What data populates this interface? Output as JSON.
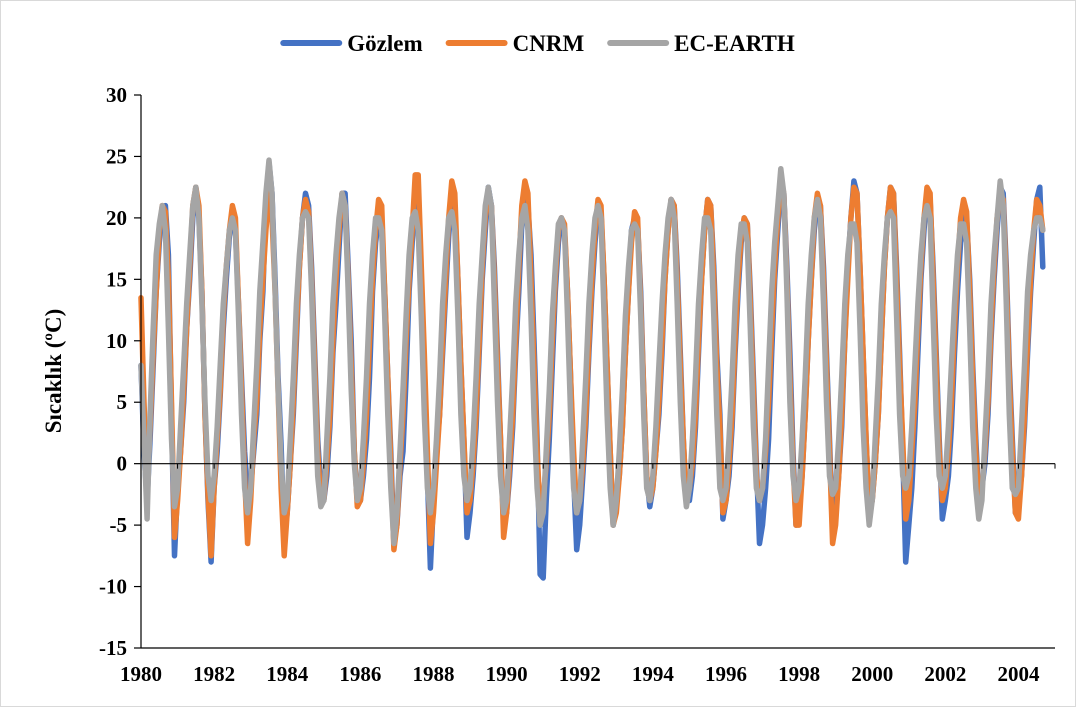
{
  "chart_data": {
    "type": "line",
    "title": "",
    "xlabel": "",
    "ylabel": "Sıcaklık (ºC)",
    "ylim": [
      -15,
      30
    ],
    "yticks": [
      -15,
      -10,
      -5,
      0,
      5,
      10,
      15,
      20,
      25,
      30
    ],
    "xlim": [
      1980,
      2005
    ],
    "xticks": [
      "1980",
      "1982",
      "1984",
      "1986",
      "1988",
      "1990",
      "1992",
      "1994",
      "1996",
      "1998",
      "2000",
      "2002",
      "2004"
    ],
    "grid": false,
    "legend_position": "top",
    "sampling": "monthly, starting January 1980",
    "series": [
      {
        "name": "Gözlem",
        "color": "#4472C4",
        "values": [
          8.0,
          1.0,
          -3.0,
          2.0,
          8.0,
          14.0,
          18.0,
          20.5,
          21.0,
          17.0,
          4.0,
          -7.5,
          -2.0,
          1.0,
          5.0,
          11.0,
          15.0,
          20.0,
          22.5,
          20.0,
          14.0,
          4.0,
          -3.0,
          -8.0,
          -2.0,
          1.0,
          5.5,
          11.0,
          15.0,
          18.5,
          20.0,
          19.0,
          13.0,
          7.0,
          1.0,
          -2.5,
          -2.0,
          1.0,
          4.0,
          10.0,
          14.0,
          21.0,
          24.5,
          22.0,
          15.0,
          7.0,
          1.5,
          -6.0,
          -4.0,
          0.0,
          4.0,
          10.0,
          16.0,
          20.0,
          22.0,
          21.0,
          16.0,
          9.0,
          2.0,
          -2.0,
          -3.0,
          -1.0,
          3.0,
          9.0,
          13.0,
          17.5,
          22.0,
          22.0,
          16.0,
          10.0,
          1.0,
          -3.0,
          -3.0,
          -1.0,
          2.0,
          7.0,
          14.0,
          18.0,
          20.0,
          19.0,
          14.0,
          7.0,
          1.0,
          -6.5,
          -5.0,
          -1.0,
          1.0,
          7.0,
          14.0,
          18.0,
          21.0,
          20.0,
          15.0,
          7.0,
          -1.0,
          -8.5,
          -3.0,
          1.0,
          4.0,
          9.0,
          14.0,
          18.5,
          22.0,
          21.0,
          15.0,
          8.0,
          2.0,
          -6.0,
          -4.0,
          -1.0,
          3.0,
          9.0,
          15.0,
          19.0,
          22.5,
          21.0,
          16.0,
          9.0,
          2.0,
          -5.0,
          -4.0,
          -1.0,
          3.0,
          9.0,
          14.0,
          19.5,
          22.0,
          21.0,
          17.0,
          10.0,
          2.0,
          -9.0,
          -9.3,
          -3.0,
          2.0,
          8.0,
          14.0,
          18.0,
          20.0,
          19.0,
          14.0,
          7.0,
          -1.0,
          -7.0,
          -5.0,
          -1.0,
          3.0,
          9.0,
          14.0,
          18.0,
          21.0,
          20.5,
          15.0,
          8.0,
          1.0,
          -5.0,
          -3.0,
          -1.0,
          3.0,
          9.0,
          14.0,
          19.0,
          20.0,
          19.5,
          14.0,
          6.0,
          -1.0,
          -3.5,
          -2.0,
          1.0,
          4.0,
          9.0,
          15.0,
          19.0,
          21.5,
          21.0,
          16.0,
          9.0,
          2.0,
          -3.0,
          -3.0,
          -1.0,
          3.0,
          9.0,
          15.0,
          19.0,
          21.5,
          21.0,
          16.0,
          9.0,
          4.0,
          -4.5,
          -3.0,
          -1.0,
          3.0,
          9.0,
          14.0,
          18.0,
          20.0,
          19.5,
          14.0,
          7.0,
          0.0,
          -6.5,
          -5.0,
          -2.0,
          2.0,
          9.0,
          15.0,
          19.0,
          22.5,
          22.0,
          16.0,
          9.0,
          1.0,
          -5.0,
          -4.0,
          -1.0,
          4.0,
          10.0,
          15.0,
          19.0,
          21.5,
          21.0,
          16.0,
          9.0,
          2.0,
          -5.5,
          -4.0,
          -1.0,
          3.0,
          10.0,
          16.0,
          20.0,
          23.0,
          22.0,
          16.0,
          9.0,
          2.0,
          -4.0,
          -3.0,
          0.0,
          4.0,
          10.0,
          16.0,
          20.0,
          22.5,
          22.0,
          16.0,
          9.0,
          1.0,
          -8.0,
          -5.0,
          -2.0,
          3.0,
          9.0,
          15.0,
          19.0,
          22.0,
          21.5,
          16.0,
          9.0,
          2.0,
          -4.5,
          -3.0,
          -1.0,
          3.0,
          9.0,
          14.0,
          18.0,
          20.5,
          20.0,
          15.0,
          8.0,
          2.0,
          -3.0,
          -2.0,
          0.0,
          4.0,
          10.0,
          15.0,
          19.0,
          22.5,
          22.0,
          16.0,
          8.0,
          2.0,
          -4.0,
          -3.0,
          -1.0,
          3.0,
          9.0,
          14.0,
          18.0,
          21.5,
          22.5,
          16.0
        ]
      },
      {
        "name": "CNRM",
        "color": "#ED7D31",
        "values": [
          13.5,
          5.0,
          -2.0,
          3.0,
          9.0,
          14.0,
          19.0,
          21.0,
          20.5,
          15.0,
          5.0,
          -6.0,
          -3.0,
          1.0,
          6.0,
          11.0,
          16.0,
          21.0,
          22.5,
          21.0,
          14.0,
          4.0,
          -2.5,
          -7.5,
          -2.0,
          2.0,
          6.0,
          12.0,
          16.0,
          19.0,
          21.0,
          20.0,
          13.0,
          6.0,
          -1.0,
          -6.5,
          -3.0,
          2.0,
          5.0,
          11.0,
          15.0,
          19.0,
          22.0,
          20.0,
          14.0,
          6.0,
          -2.0,
          -7.5,
          -4.0,
          0.0,
          5.0,
          11.0,
          16.0,
          20.0,
          21.5,
          20.5,
          15.0,
          8.0,
          1.0,
          -3.0,
          -3.0,
          0.0,
          4.0,
          10.0,
          15.0,
          19.0,
          22.0,
          21.0,
          15.0,
          8.0,
          1.0,
          -3.5,
          -3.0,
          0.0,
          4.0,
          10.0,
          15.0,
          19.0,
          21.5,
          21.0,
          14.0,
          7.0,
          0.0,
          -7.0,
          -5.0,
          0.0,
          4.0,
          10.0,
          15.0,
          19.0,
          23.5,
          23.5,
          16.0,
          9.0,
          1.0,
          -6.5,
          -4.0,
          0.0,
          4.0,
          10.0,
          15.0,
          20.0,
          23.0,
          22.0,
          15.0,
          8.0,
          2.0,
          -4.0,
          -3.0,
          0.0,
          4.0,
          10.0,
          16.0,
          20.0,
          22.0,
          21.0,
          15.0,
          8.0,
          2.0,
          -6.0,
          -4.0,
          0.0,
          4.0,
          10.0,
          16.0,
          21.0,
          23.0,
          22.0,
          15.0,
          8.0,
          1.0,
          -4.0,
          -3.0,
          0.0,
          4.0,
          10.0,
          15.0,
          19.0,
          20.0,
          19.5,
          14.0,
          7.0,
          1.0,
          -4.0,
          -3.0,
          0.0,
          4.0,
          10.0,
          15.0,
          19.0,
          21.5,
          21.0,
          15.0,
          8.0,
          1.0,
          -5.0,
          -4.0,
          -1.0,
          3.0,
          9.0,
          14.0,
          18.0,
          20.5,
          20.0,
          13.0,
          6.0,
          -1.0,
          -3.0,
          -2.0,
          1.0,
          5.0,
          10.0,
          15.0,
          19.0,
          21.5,
          21.0,
          15.0,
          8.0,
          2.0,
          -3.0,
          -2.0,
          0.0,
          4.0,
          10.0,
          15.0,
          19.0,
          21.5,
          21.0,
          15.0,
          8.0,
          3.0,
          -4.0,
          -3.0,
          0.0,
          4.0,
          10.0,
          15.0,
          18.5,
          20.0,
          19.5,
          13.0,
          6.0,
          -1.0,
          -3.0,
          -2.0,
          1.0,
          5.0,
          11.0,
          16.0,
          20.0,
          23.0,
          22.0,
          15.0,
          7.0,
          0.0,
          -5.0,
          -5.0,
          -1.0,
          4.0,
          10.0,
          15.0,
          20.0,
          22.0,
          21.0,
          15.0,
          8.0,
          1.0,
          -6.5,
          -5.0,
          -1.0,
          4.0,
          10.0,
          15.0,
          20.0,
          22.5,
          22.0,
          16.0,
          9.0,
          2.0,
          -4.0,
          -3.0,
          0.0,
          4.0,
          10.0,
          16.0,
          20.0,
          22.5,
          22.0,
          15.0,
          8.0,
          2.0,
          -4.5,
          -3.0,
          1.0,
          5.0,
          11.0,
          16.0,
          20.0,
          22.5,
          22.0,
          15.0,
          8.0,
          1.0,
          -3.0,
          -2.0,
          1.0,
          5.0,
          11.0,
          16.0,
          20.0,
          21.5,
          20.5,
          14.0,
          7.0,
          1.0,
          -3.0,
          -2.0,
          1.0,
          5.0,
          11.0,
          16.0,
          20.0,
          22.0,
          21.5,
          15.0,
          7.0,
          1.0,
          -4.0,
          -4.5,
          -1.0,
          4.0,
          10.0,
          15.0,
          19.0,
          21.5,
          21.0,
          19.0
        ]
      },
      {
        "name": "EC-EARTH",
        "color": "#A5A5A5",
        "values": [
          8.0,
          2.0,
          -4.5,
          4.0,
          11.0,
          17.0,
          19.5,
          21.0,
          19.0,
          11.0,
          2.0,
          -3.5,
          -2.0,
          3.0,
          8.0,
          13.0,
          17.0,
          21.0,
          22.5,
          20.0,
          13.0,
          5.0,
          -1.0,
          -3.0,
          -1.0,
          3.0,
          8.0,
          13.0,
          16.0,
          19.0,
          20.0,
          19.0,
          12.0,
          4.0,
          -2.0,
          -4.0,
          -2.0,
          3.0,
          8.0,
          14.0,
          18.0,
          22.0,
          24.7,
          22.0,
          14.0,
          6.0,
          0.0,
          -4.0,
          -3.0,
          2.0,
          7.0,
          13.0,
          17.0,
          20.0,
          20.5,
          20.0,
          14.0,
          6.0,
          -1.0,
          -3.5,
          -3.0,
          2.0,
          7.0,
          13.0,
          17.0,
          20.0,
          22.0,
          21.0,
          14.0,
          6.0,
          0.0,
          -3.0,
          -2.0,
          2.0,
          7.0,
          13.0,
          17.0,
          20.0,
          20.0,
          19.0,
          12.0,
          4.0,
          -2.0,
          -6.5,
          -4.0,
          1.0,
          6.0,
          12.0,
          17.0,
          20.0,
          20.5,
          19.0,
          12.0,
          4.0,
          -2.0,
          -4.0,
          -2.0,
          2.0,
          7.0,
          13.0,
          17.0,
          20.0,
          20.5,
          19.0,
          12.0,
          4.0,
          -1.0,
          -3.0,
          -2.0,
          2.0,
          7.0,
          13.0,
          17.0,
          21.0,
          22.5,
          21.0,
          13.0,
          5.0,
          -1.0,
          -4.0,
          -3.0,
          2.0,
          7.0,
          13.0,
          17.0,
          20.0,
          21.0,
          19.0,
          12.0,
          4.0,
          -2.0,
          -5.0,
          -4.0,
          1.0,
          6.0,
          12.0,
          16.0,
          19.5,
          20.0,
          19.0,
          12.0,
          4.0,
          -2.0,
          -4.0,
          -3.0,
          2.0,
          7.0,
          13.0,
          17.0,
          20.0,
          21.0,
          20.0,
          12.0,
          4.0,
          -2.0,
          -5.0,
          -3.0,
          1.0,
          6.0,
          12.0,
          16.0,
          19.0,
          19.5,
          19.0,
          12.0,
          4.0,
          -2.0,
          -3.0,
          -1.0,
          3.0,
          8.0,
          13.0,
          17.0,
          20.0,
          21.5,
          20.0,
          13.0,
          5.0,
          -1.0,
          -3.5,
          -2.0,
          2.0,
          7.0,
          13.0,
          17.0,
          20.0,
          20.0,
          19.0,
          12.0,
          4.0,
          -2.0,
          -3.0,
          -2.0,
          2.0,
          7.0,
          13.0,
          17.0,
          19.5,
          19.5,
          18.0,
          11.0,
          3.0,
          -2.0,
          -3.0,
          -2.0,
          2.0,
          8.0,
          14.0,
          18.0,
          21.0,
          24.0,
          22.0,
          14.0,
          5.0,
          -1.0,
          -3.0,
          -2.0,
          2.0,
          7.0,
          13.0,
          17.0,
          20.0,
          21.5,
          20.0,
          13.0,
          5.0,
          -1.0,
          -2.5,
          -2.0,
          2.0,
          7.0,
          13.0,
          17.0,
          19.5,
          19.5,
          18.0,
          11.0,
          3.0,
          -2.0,
          -5.0,
          -3.0,
          2.0,
          7.0,
          13.0,
          17.0,
          20.0,
          20.5,
          20.0,
          12.0,
          4.0,
          -1.0,
          -2.0,
          -1.0,
          3.0,
          8.0,
          13.0,
          17.0,
          20.0,
          21.0,
          20.0,
          12.0,
          4.0,
          -1.0,
          -2.0,
          -1.0,
          3.0,
          8.0,
          13.0,
          17.0,
          19.5,
          19.5,
          18.0,
          11.0,
          3.0,
          -2.0,
          -4.5,
          -3.0,
          2.0,
          7.0,
          13.0,
          17.0,
          20.0,
          23.0,
          21.0,
          13.0,
          4.0,
          -2.0,
          -2.5,
          -2.0,
          3.0,
          8.0,
          14.0,
          17.0,
          19.0,
          20.0,
          20.0,
          19.0
        ]
      }
    ]
  }
}
